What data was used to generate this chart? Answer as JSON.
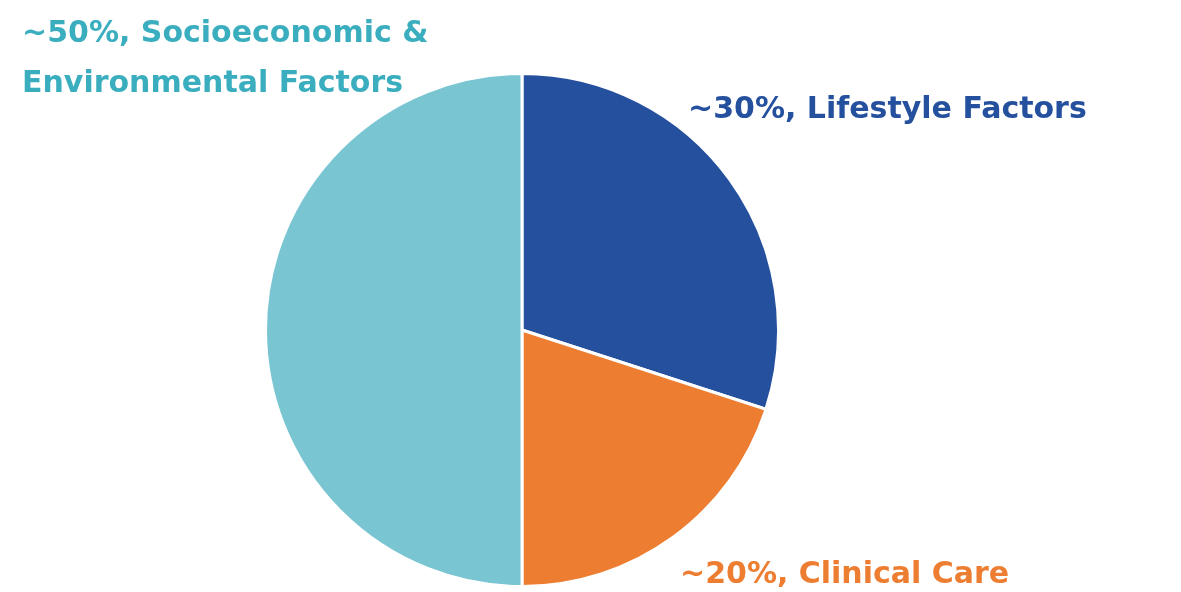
{
  "chart_data": {
    "type": "pie",
    "categories": [
      "Lifestyle Factors",
      "Clinical Care",
      "Socioeconomic & Environmental Factors"
    ],
    "values": [
      30,
      20,
      50
    ],
    "value_labels": [
      "~30%",
      "~20%",
      "~50%"
    ],
    "colors": [
      "#25509e",
      "#ed7d31",
      "#79c5d2"
    ],
    "legend": false
  }
}
